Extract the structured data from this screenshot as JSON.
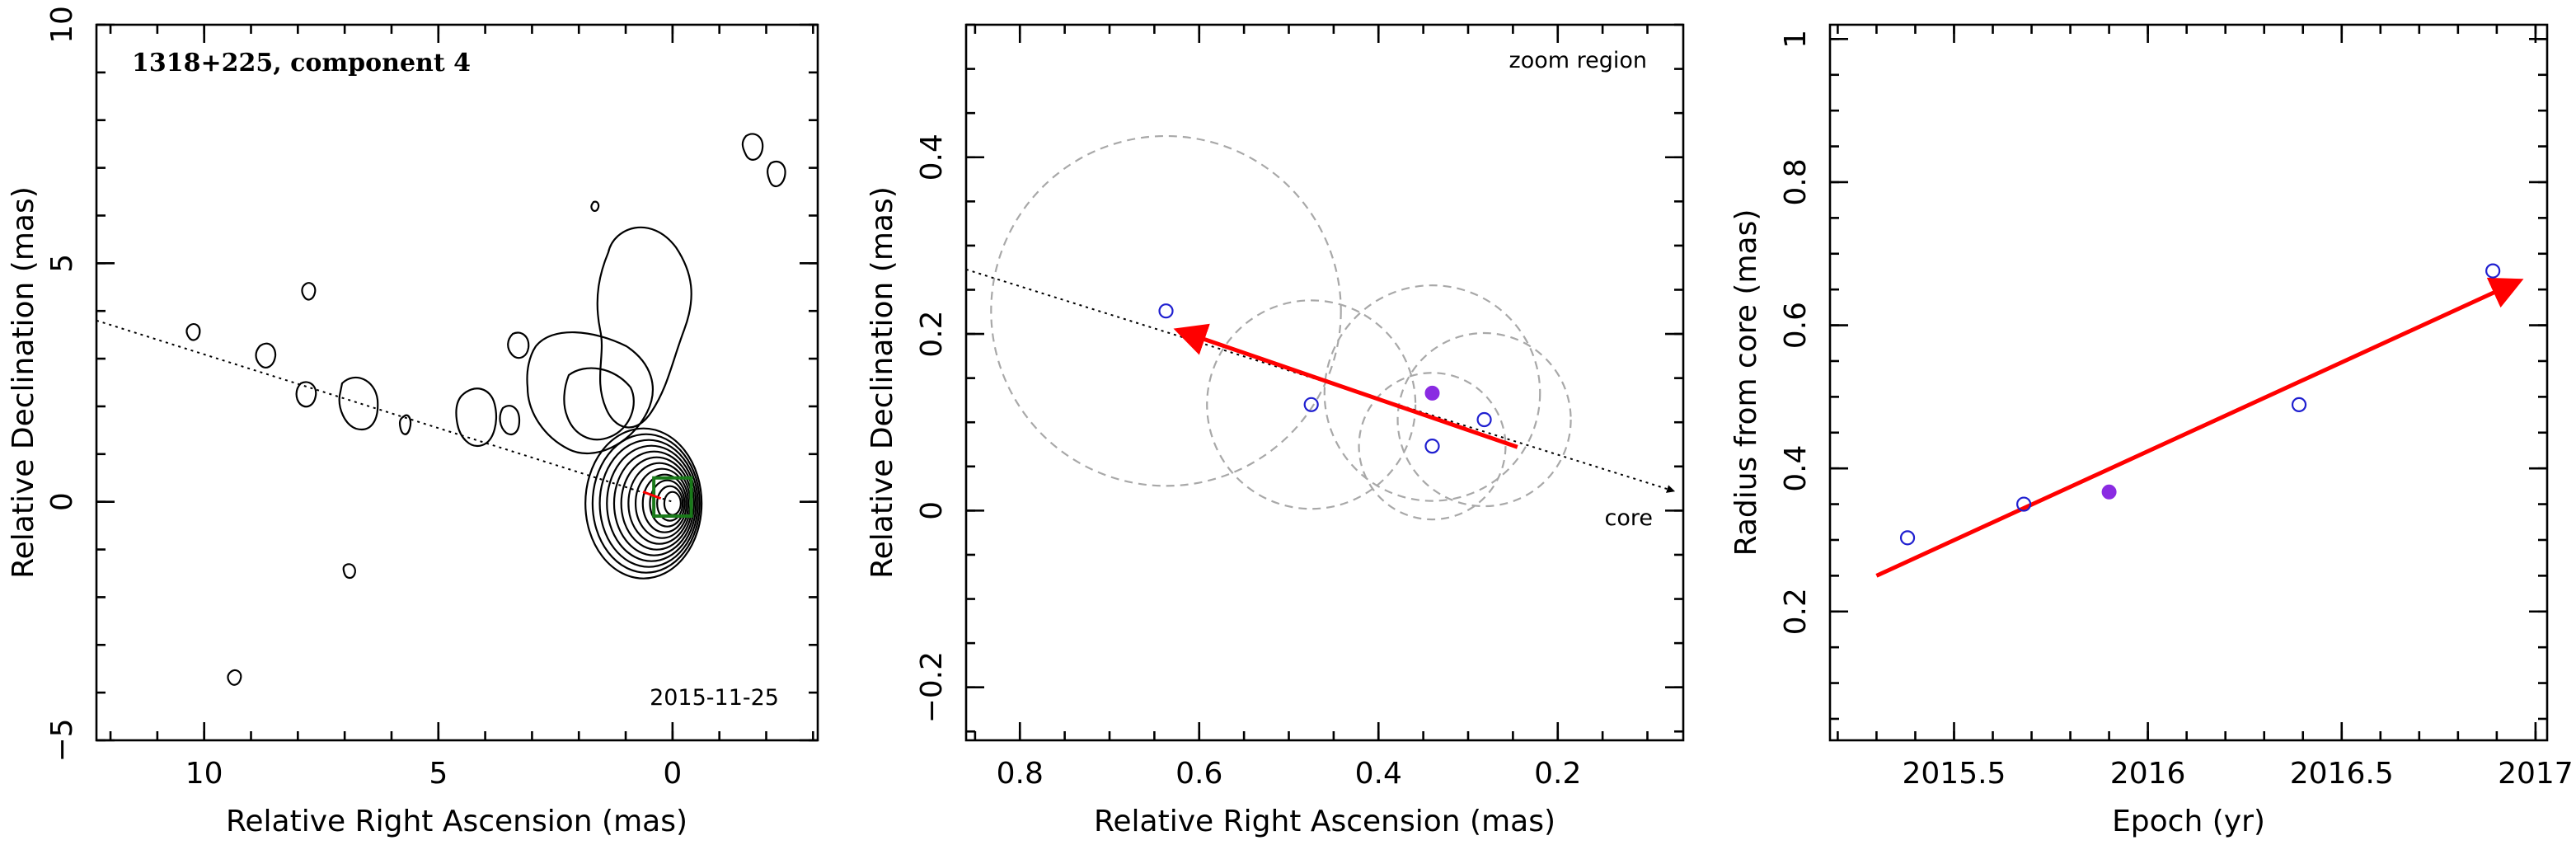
{
  "chart_data": [
    {
      "panel": "left",
      "type": "contour",
      "title": "1318+225, component 4",
      "annotation": "2015-11-25",
      "xlabel": "Relative Right Ascension (mas)",
      "ylabel": "Relative Declination (mas)",
      "xlim": [
        12.3,
        -3.1
      ],
      "ylim": [
        -5,
        10
      ],
      "xticks": [
        "10",
        "5",
        "0"
      ],
      "yticks": [
        "−5",
        "0",
        "5",
        "10"
      ],
      "xtick_values": [
        10,
        5,
        0
      ],
      "ytick_values": [
        -5,
        0,
        5,
        10
      ],
      "jet_axis_line": {
        "x": [
          12.3,
          0
        ],
        "y": [
          3.8,
          0
        ]
      },
      "core_position": [
        0,
        0
      ],
      "zoom_box": {
        "x": [
          0.4,
          -0.4
        ],
        "y": [
          -0.3,
          0.5
        ]
      },
      "component_arrow": {
        "x_from": 0.25,
        "y_from": 0.07,
        "x_to": 0.63,
        "y_to": 0.21
      }
    },
    {
      "panel": "middle",
      "type": "scatter",
      "title": "zoom region",
      "xlabel": "Relative Right Ascension (mas)",
      "ylabel": "Relative Declination (mas)",
      "xlim": [
        0.86,
        0.06
      ],
      "ylim": [
        -0.26,
        0.55
      ],
      "xticks": [
        "0.8",
        "0.6",
        "0.4",
        "0.2"
      ],
      "yticks": [
        "−0.2",
        "0",
        "0.2",
        "0.4"
      ],
      "xtick_values": [
        0.8,
        0.6,
        0.4,
        0.2
      ],
      "ytick_values": [
        -0.2,
        0,
        0.2,
        0.4
      ],
      "core_label": "core",
      "points": [
        {
          "x": 0.637,
          "y": 0.226,
          "err": 0.198,
          "filled": false
        },
        {
          "x": 0.475,
          "y": 0.12,
          "err": 0.118,
          "filled": false
        },
        {
          "x": 0.34,
          "y": 0.133,
          "err": 0.122,
          "filled": true
        },
        {
          "x": 0.34,
          "y": 0.073,
          "err": 0.083,
          "filled": false
        },
        {
          "x": 0.282,
          "y": 0.103,
          "err": 0.098,
          "filled": false
        }
      ],
      "fit_arrow": {
        "x_from": 0.245,
        "y_from": 0.072,
        "x_to": 0.62,
        "y_to": 0.203
      },
      "jet_axis_line": {
        "x": [
          0.86,
          0.07
        ],
        "y": [
          0.273,
          0.022
        ]
      }
    },
    {
      "panel": "right",
      "type": "scatter",
      "xlabel": "Epoch (yr)",
      "ylabel": "Radius from core (mas)",
      "xlim": [
        2015.18,
        2017.03
      ],
      "ylim": [
        0.02,
        1.02
      ],
      "xticks": [
        "2015.5",
        "2016",
        "2016.5",
        "2017"
      ],
      "yticks": [
        "0.2",
        "0.4",
        "0.6",
        "0.8",
        "1"
      ],
      "xtick_values": [
        2015.5,
        2016,
        2016.5,
        2017
      ],
      "ytick_values": [
        0.2,
        0.4,
        0.6,
        0.8,
        1
      ],
      "points": [
        {
          "x": 2015.38,
          "y": 0.303,
          "filled": false
        },
        {
          "x": 2015.68,
          "y": 0.35,
          "filled": false
        },
        {
          "x": 2015.9,
          "y": 0.367,
          "filled": true
        },
        {
          "x": 2016.39,
          "y": 0.489,
          "filled": false
        },
        {
          "x": 2016.89,
          "y": 0.676,
          "filled": false
        }
      ],
      "fit_arrow": {
        "x_from": 2015.3,
        "y_from": 0.25,
        "x_to": 2016.95,
        "y_to": 0.66
      }
    }
  ],
  "colors": {
    "arrow": "#ff0000",
    "open_marker": "#1f1fd0",
    "filled_marker": "#8a2be2",
    "error_circle": "#a8a8a8",
    "zoom_box": "#1a7a1a"
  }
}
